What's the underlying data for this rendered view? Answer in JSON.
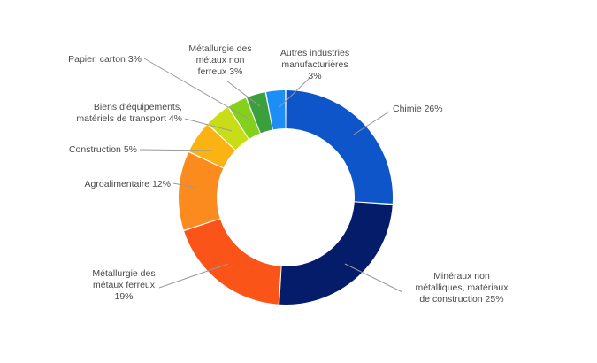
{
  "chart_data": {
    "type": "pie",
    "variant": "donut",
    "title": "",
    "legend": "none",
    "slices": [
      {
        "name": "Chimie",
        "value": 26,
        "label_lines": [
          "Chimie 26%"
        ],
        "color": "#0d55c8"
      },
      {
        "name": "Minéraux non métalliques, matériaux de construction",
        "value": 25,
        "label_lines": [
          "Minéraux non",
          "métalliques, matériaux",
          "de construction 25%"
        ],
        "color": "#041c6a"
      },
      {
        "name": "Métallurgie des métaux ferreux",
        "value": 19,
        "label_lines": [
          "Métallurgie des",
          "métaux ferreux",
          "19%"
        ],
        "color": "#fa5418"
      },
      {
        "name": "Agroalimentaire",
        "value": 12,
        "label_lines": [
          "Agroalimentaire 12%"
        ],
        "color": "#fb8b1e"
      },
      {
        "name": "Construction",
        "value": 5,
        "label_lines": [
          "Construction 5%"
        ],
        "color": "#fbb213"
      },
      {
        "name": "Biens d'équipements, matériels de transport",
        "value": 4,
        "label_lines": [
          "Biens d'équipements,",
          "matériels de transport 4%"
        ],
        "color": "#c9dc18"
      },
      {
        "name": "Papier, carton",
        "value": 3,
        "label_lines": [
          "Papier, carton 3%"
        ],
        "color": "#84d11c"
      },
      {
        "name": "Métallurgie des métaux non ferreux",
        "value": 3,
        "label_lines": [
          "Métallurgie des",
          "métaux non",
          "ferreux 3%"
        ],
        "color": "#3a9f3c"
      },
      {
        "name": "Autres industries manufacturières",
        "value": 3,
        "label_lines": [
          "Autres industries",
          "manufacturières",
          "3%"
        ],
        "color": "#1d8ef5"
      }
    ]
  }
}
